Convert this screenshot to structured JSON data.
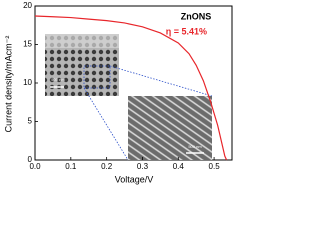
{
  "chart_data": {
    "type": "line",
    "xlabel": "Voltage/V",
    "ylabel": "Current density/mAcm⁻²",
    "x": [
      0,
      0.05,
      0.1,
      0.15,
      0.2,
      0.25,
      0.3,
      0.35,
      0.4,
      0.43,
      0.45,
      0.47,
      0.49,
      0.51,
      0.53,
      0.535
    ],
    "series": [
      {
        "name": "ZnONS",
        "color": "#e8262b",
        "values": [
          18.7,
          18.6,
          18.5,
          18.3,
          18.1,
          17.8,
          17.3,
          16.5,
          15.2,
          13.8,
          12.3,
          10.3,
          7.6,
          4.5,
          0.5,
          0
        ]
      }
    ],
    "annotations": [
      "η = 5.41%",
      "500 nm",
      "500 nm"
    ],
    "xlim": [
      0,
      0.55
    ],
    "xticks": [
      {
        "value": 0,
        "label": "0.0"
      },
      0.1,
      0.2,
      0.3,
      0.4,
      0.5
    ],
    "ylim": [
      0,
      20
    ],
    "yticks": [
      0,
      5,
      10,
      15,
      20
    ]
  }
}
